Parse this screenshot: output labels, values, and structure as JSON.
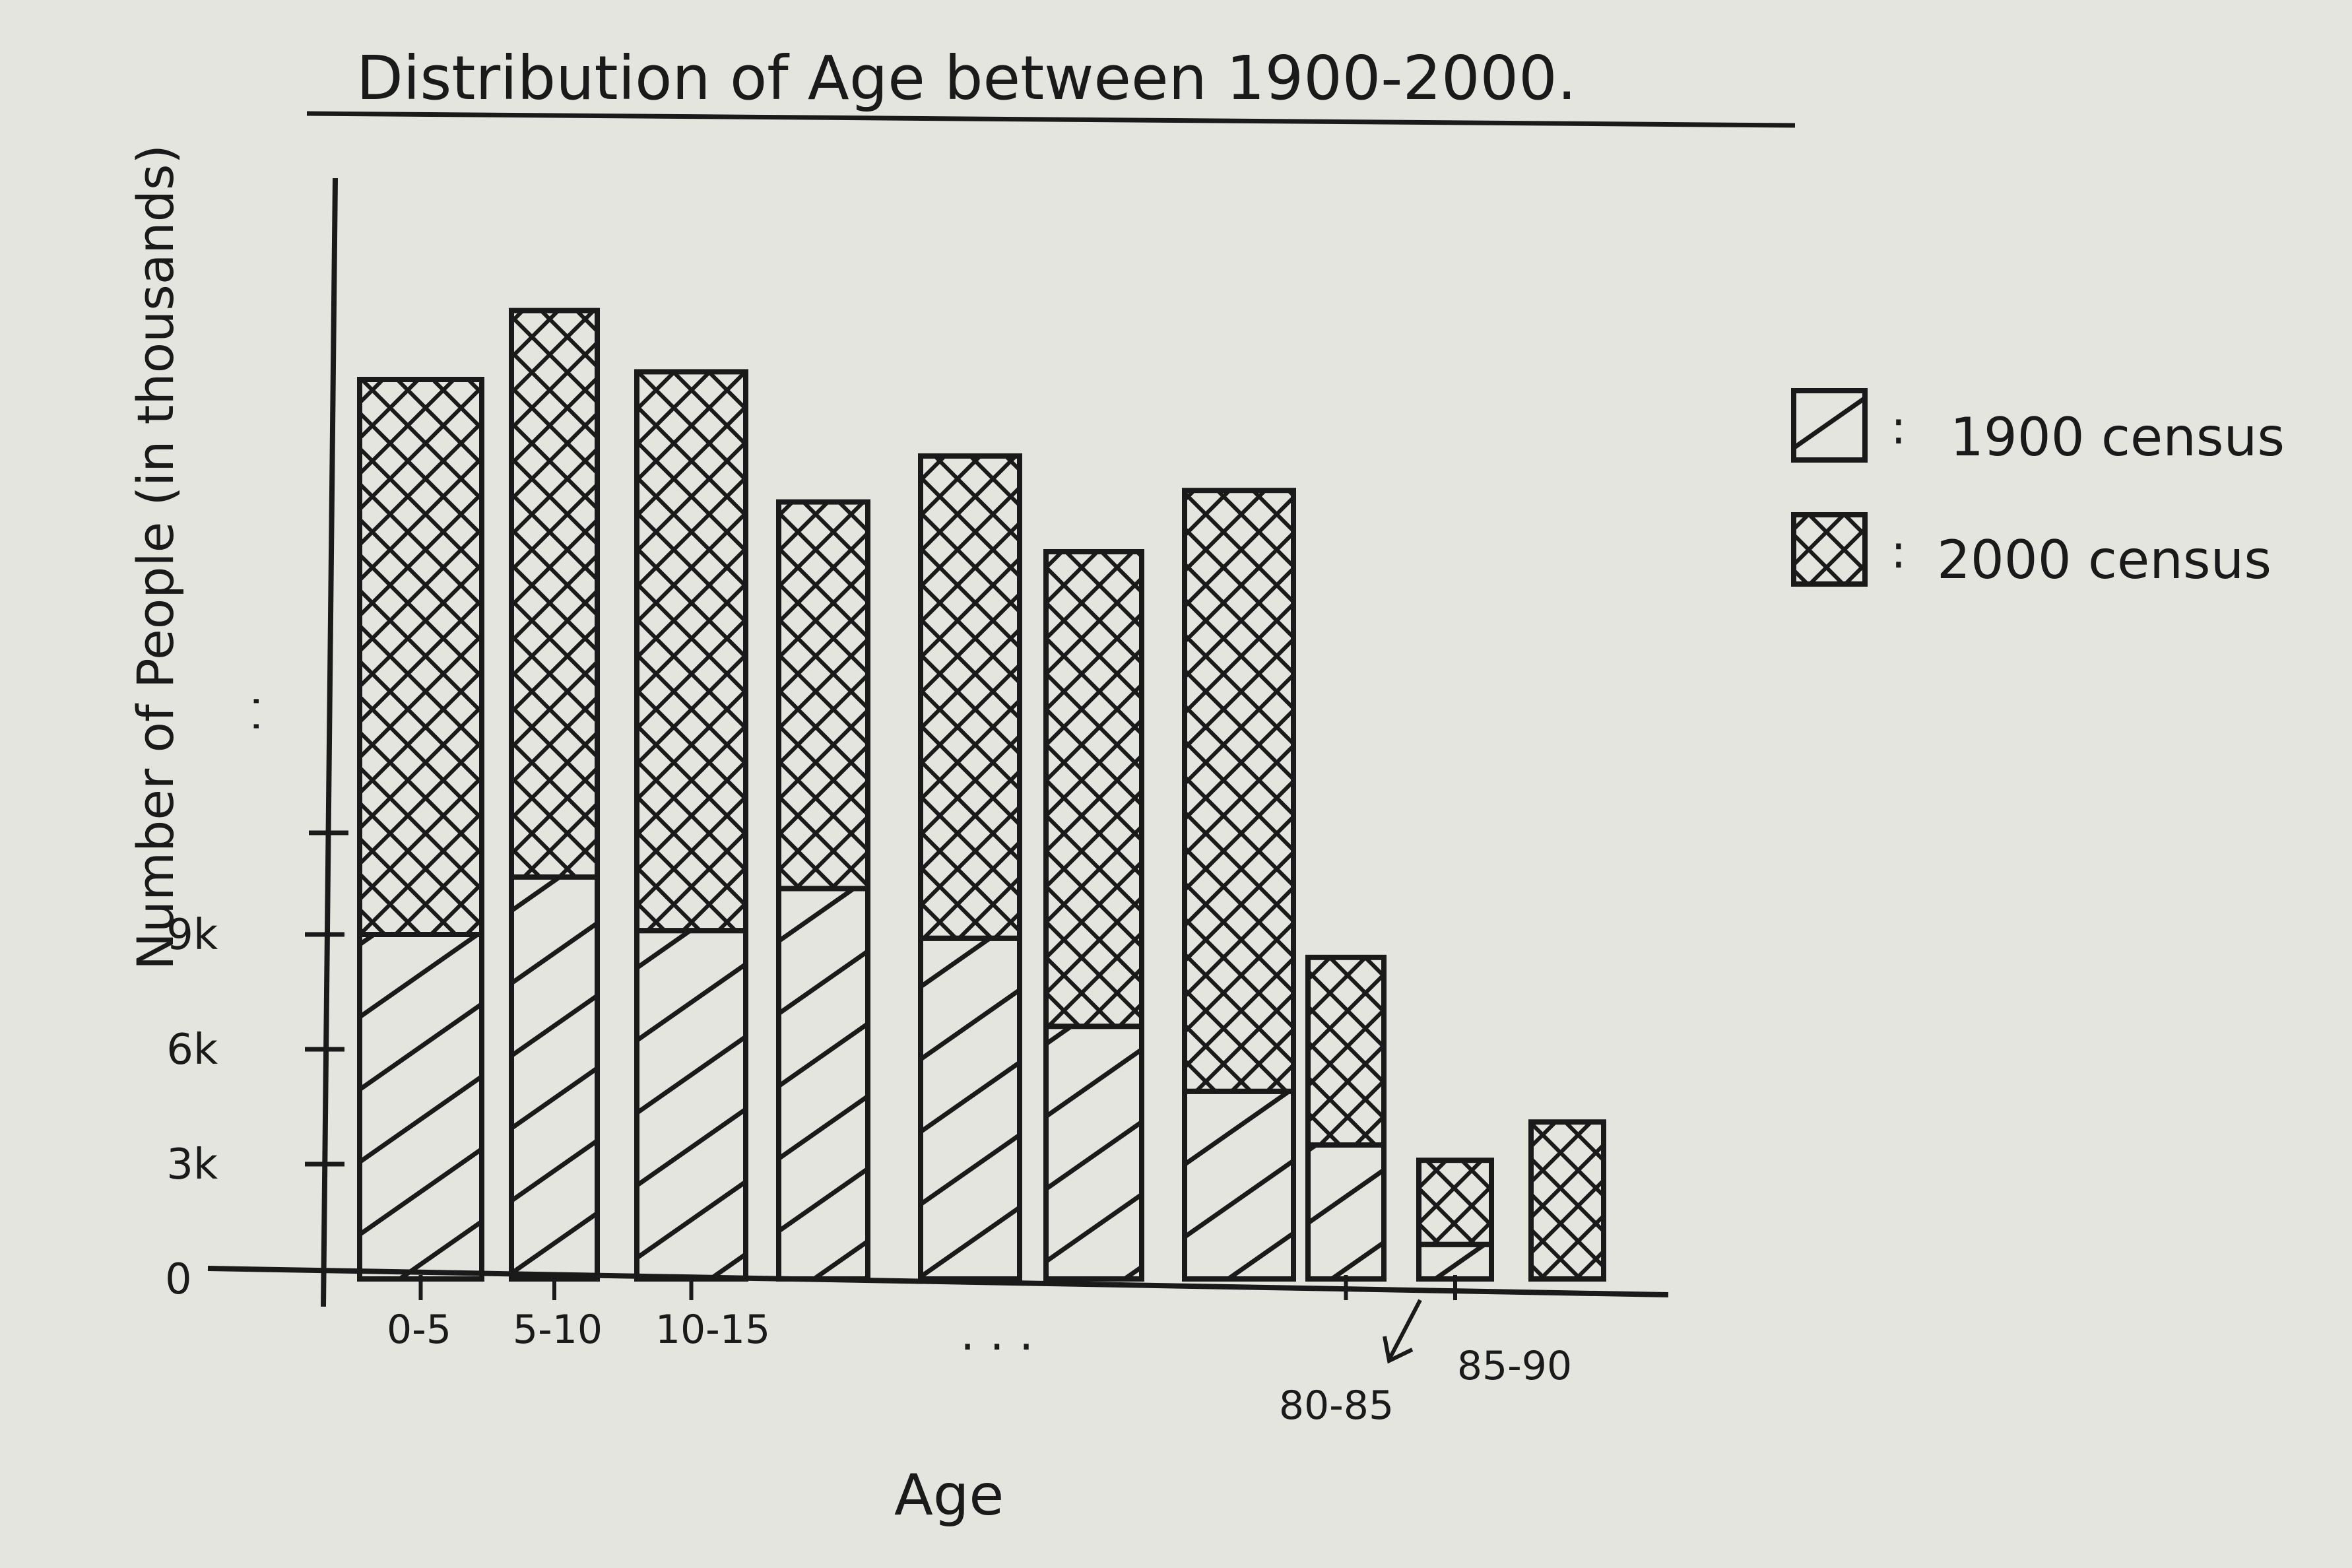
{
  "chart_data": {
    "type": "bar",
    "stacked": true,
    "title": "Distribution of Age between 1900-2000.",
    "xlabel": "Age",
    "ylabel": "Number of People (in thousands)",
    "y_ticks": [
      {
        "value": 0,
        "label": "0"
      },
      {
        "value": 3,
        "label": "3k"
      },
      {
        "value": 6,
        "label": "6k"
      },
      {
        "value": 9,
        "label": "9k"
      }
    ],
    "y_break_marker": ". .",
    "x_ellipsis": ". . .",
    "x_tick_labels": [
      {
        "bar": 0,
        "label": "0-5"
      },
      {
        "bar": 1,
        "label": "5-10"
      },
      {
        "bar": 2,
        "label": "10-15"
      },
      {
        "bar": 7,
        "label": "80-85"
      },
      {
        "bar": 8,
        "label": "85-90"
      }
    ],
    "categories": [
      "0-5",
      "5-10",
      "10-15",
      "",
      "",
      "",
      "",
      "80-85",
      "85-90",
      ""
    ],
    "series": [
      {
        "name": "1900 census",
        "values": [
          9.0,
          10.5,
          9.1,
          10.2,
          8.9,
          6.6,
          4.9,
          3.5,
          0.9,
          0.0
        ]
      },
      {
        "name": "2000 census",
        "values": [
          14.5,
          14.8,
          14.6,
          10.1,
          12.6,
          12.4,
          15.7,
          4.9,
          2.2,
          4.1
        ]
      }
    ],
    "ylim": [
      0,
      30
    ],
    "grid": false,
    "legend": {
      "position": "right"
    },
    "colors": {
      "ink": "#1a1a1a",
      "paper": "#e4e5de"
    }
  }
}
